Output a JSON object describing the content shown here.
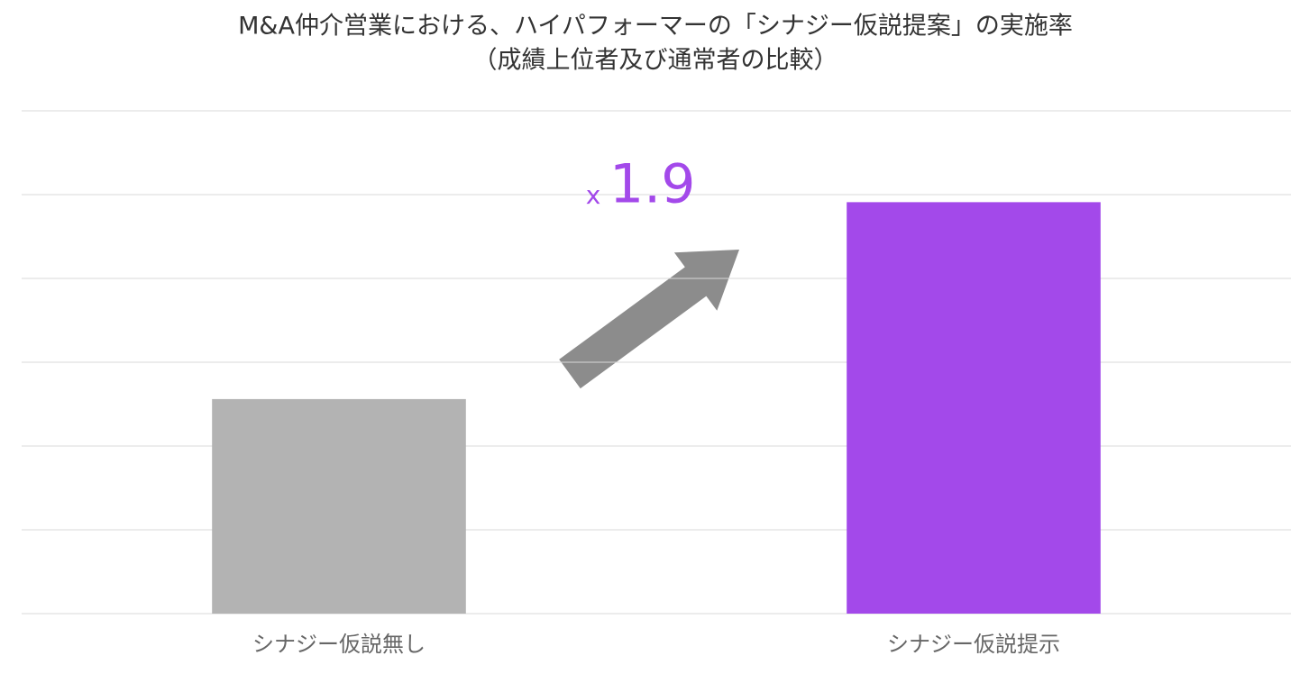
{
  "chart_data": {
    "type": "bar",
    "title": "M&A仲介営業における、ハイパフォーマーの「シナジー仮説提案」の実施率",
    "subtitle": "（成績上位者及び通常者の比較）",
    "categories": [
      "シナジー仮説無し",
      "シナジー仮説提示"
    ],
    "values": [
      2.56,
      4.91
    ],
    "colors": [
      "#b3b3b3",
      "#a349ea"
    ],
    "ylim": [
      0,
      6
    ],
    "yticks": [
      0,
      1,
      2,
      3,
      4,
      5,
      6
    ],
    "grid": true,
    "annotation": {
      "prefix": "x",
      "text": "1.9",
      "color": "#a349ea"
    }
  }
}
